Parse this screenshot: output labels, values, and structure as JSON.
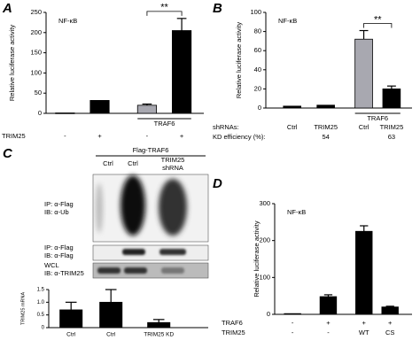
{
  "chart_data": [
    {
      "type": "bar",
      "panel": "A",
      "ylabel": "Relative luciferase activity",
      "annotation": "NF-κB",
      "values": [
        1,
        32,
        20,
        205
      ],
      "errors": [
        null,
        null,
        3,
        30
      ],
      "colors": [
        "#000000",
        "#000000",
        "#a8a8b0",
        "#000000"
      ],
      "ylim": [
        0,
        250
      ],
      "yticks": [
        0,
        50,
        100,
        150,
        200,
        250
      ],
      "significance": "**",
      "group_label": "TRAF6",
      "rows": [
        {
          "label": "TRIM25",
          "values": [
            "-",
            "+",
            "-",
            "+"
          ]
        }
      ]
    },
    {
      "type": "bar",
      "panel": "B",
      "ylabel": "Relative luciferase activity",
      "annotation": "NF-κB",
      "values": [
        2,
        3,
        72,
        20
      ],
      "errors": [
        null,
        null,
        9,
        3
      ],
      "colors": [
        "#000000",
        "#000000",
        "#a8a8b0",
        "#000000"
      ],
      "ylim": [
        0,
        100
      ],
      "yticks": [
        0,
        20,
        40,
        60,
        80,
        100
      ],
      "significance": "**",
      "group_label": "TRAF6",
      "rows": [
        {
          "label": "shRNAs:",
          "values": [
            "Ctrl",
            "TRIM25",
            "Ctrl",
            "TRIM25"
          ]
        },
        {
          "label": "KD efficiency (%):",
          "values": [
            null,
            "54",
            null,
            "63"
          ]
        }
      ]
    },
    {
      "type": "bar",
      "panel": "C",
      "ylabel": "TRIM25 mRNA",
      "categories": [
        "Ctrl",
        "Ctrl",
        "TRIM25 KD"
      ],
      "values": [
        0.7,
        1.0,
        0.2
      ],
      "errors": [
        0.3,
        0.5,
        0.12
      ],
      "colors": [
        "#000000",
        "#000000",
        "#000000"
      ],
      "ylim": [
        0,
        1.5
      ],
      "yticks": [
        0,
        0.5,
        {
          "value": 1,
          "label": "1.0"
        },
        1.5
      ]
    },
    {
      "type": "bar",
      "panel": "D",
      "ylabel": "Relative luciferase activity",
      "annotation": "NF-κB",
      "values": [
        2,
        48,
        225,
        20
      ],
      "errors": [
        null,
        5,
        15,
        2
      ],
      "colors": [
        "#000000",
        "#000000",
        "#000000",
        "#000000"
      ],
      "ylim": [
        0,
        300
      ],
      "yticks": [
        0,
        100,
        200,
        300
      ],
      "rows": [
        {
          "label": "TRAF6",
          "values": [
            "-",
            "+",
            "+",
            "+"
          ]
        },
        {
          "label": "TRIM25",
          "values": [
            "-",
            "-",
            "WT",
            "CS"
          ]
        }
      ]
    }
  ],
  "blot": {
    "header": "Flag-TRAF6",
    "lanes": [
      "Ctrl",
      "Ctrl",
      [
        "TRIM25",
        "shRNA"
      ]
    ],
    "rows": [
      [
        "IP: α-Flag",
        "IB: α-Ub"
      ],
      [
        "IP: α-Flag",
        "IB: α-Flag"
      ],
      [
        "WCL",
        "IB: α-TRIM25"
      ]
    ]
  }
}
